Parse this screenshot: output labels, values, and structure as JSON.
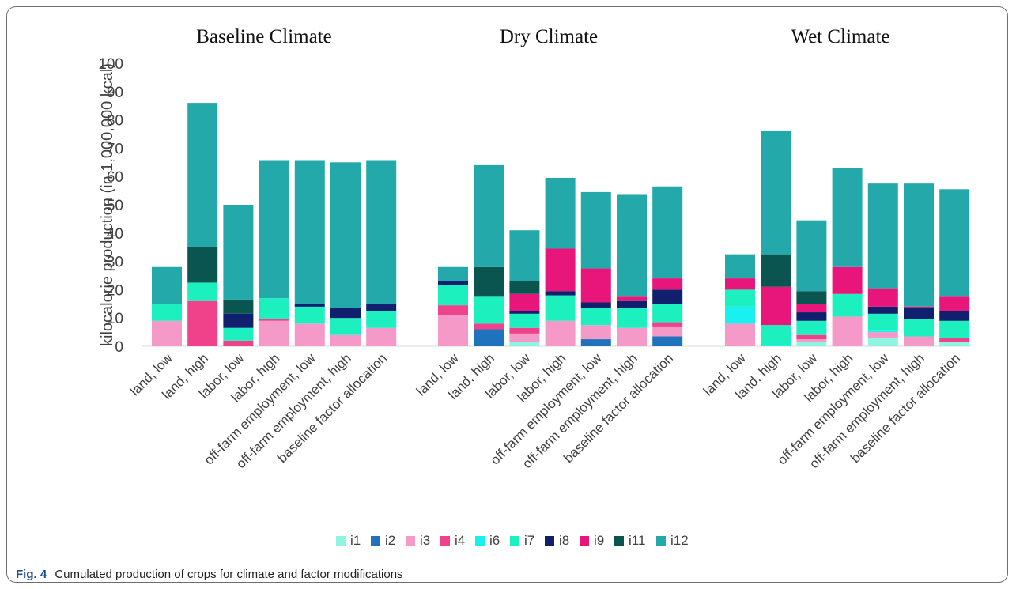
{
  "figure": {
    "caption_label": "Fig. 4",
    "caption_text": "Cumulated production of crops for climate and factor modifications"
  },
  "chart_data": {
    "type": "bar",
    "stacked": true,
    "ylabel": "kilocalorie production (in 1,000,000 kcal)",
    "ylim": [
      0,
      100
    ],
    "yticks": [
      0,
      10,
      20,
      30,
      40,
      50,
      60,
      70,
      80,
      90,
      100
    ],
    "grid": false,
    "legend_position": "bottom",
    "categories": [
      "land, low",
      "land, high",
      "labor, low",
      "labor, high",
      "off-farm employment, low",
      "off-farm employment, high",
      "baseline factor allocation"
    ],
    "series_names": [
      "i1",
      "i2",
      "i3",
      "i4",
      "i6",
      "i7",
      "i8",
      "i9",
      "i11",
      "i12"
    ],
    "series_colors": {
      "i1": "#8ff5e0",
      "i2": "#1f73bd",
      "i3": "#f59ac8",
      "i4": "#f0428a",
      "i6": "#19f0f0",
      "i7": "#1cf0be",
      "i8": "#10206e",
      "i9": "#e8157a",
      "i11": "#0a5550",
      "i12": "#23a9a9"
    },
    "panels": [
      {
        "title": "Baseline Climate",
        "bars": [
          {
            "i3": 9,
            "i7": 6,
            "i12": 13
          },
          {
            "i4": 16,
            "i7": 6.5,
            "i11": 12.5,
            "i12": 51
          },
          {
            "i4": 2,
            "i7": 4.5,
            "i8": 5,
            "i11": 5,
            "i12": 33.5
          },
          {
            "i3": 9,
            "i7": 7.5,
            "i4": 0.5,
            "i12": 48.5
          },
          {
            "i3": 8,
            "i7": 6,
            "i8": 1,
            "i12": 50.5
          },
          {
            "i3": 4,
            "i7": 6,
            "i8": 3.5,
            "i12": 51.5
          },
          {
            "i3": 6.5,
            "i7": 6,
            "i8": 2.5,
            "i12": 50.5
          }
        ]
      },
      {
        "title": "Dry Climate",
        "bars": [
          {
            "i3": 11,
            "i7": 7,
            "i8": 1.5,
            "i4": 3.5,
            "i12": 5
          },
          {
            "i2": 6,
            "i4": 2,
            "i7": 9.5,
            "i11": 10.5,
            "i12": 36
          },
          {
            "i1": 1.5,
            "i3": 3,
            "i4": 2,
            "i7": 5,
            "i8": 1,
            "i9": 6,
            "i11": 4.5,
            "i12": 18
          },
          {
            "i3": 9,
            "i7": 9,
            "i8": 1.5,
            "i9": 15,
            "i12": 25
          },
          {
            "i2": 2.5,
            "i3": 5,
            "i7": 6,
            "i8": 2,
            "i9": 12,
            "i12": 27
          },
          {
            "i3": 6.5,
            "i7": 7,
            "i8": 2.5,
            "i9": 1.5,
            "i12": 36
          },
          {
            "i2": 3.5,
            "i3": 3.5,
            "i4": 1.5,
            "i7": 6.5,
            "i8": 5,
            "i9": 4,
            "i12": 32.5
          }
        ]
      },
      {
        "title": "Wet Climate",
        "bars": [
          {
            "i3": 8,
            "i6": 6,
            "i7": 6,
            "i9": 4,
            "i12": 8.5
          },
          {
            "i9": 13.5,
            "i6": 0.5,
            "i7": 7,
            "i11": 11.5,
            "i12": 43.5
          },
          {
            "i1": 1.5,
            "i3": 1,
            "i4": 1.5,
            "i7": 5,
            "i8": 3,
            "i9": 3,
            "i11": 4.5,
            "i12": 25
          },
          {
            "i3": 10.5,
            "i7": 8,
            "i9": 9.5,
            "i12": 35
          },
          {
            "i1": 3,
            "i3": 2,
            "i6": 0.5,
            "i7": 6,
            "i8": 2.5,
            "i9": 6.5,
            "i12": 37
          },
          {
            "i3": 3.5,
            "i7": 6,
            "i8": 4,
            "i9": 0.5,
            "i12": 43.5
          },
          {
            "i1": 1.5,
            "i4": 1.5,
            "i7": 6,
            "i8": 3.5,
            "i9": 5,
            "i12": 38
          }
        ]
      }
    ]
  }
}
